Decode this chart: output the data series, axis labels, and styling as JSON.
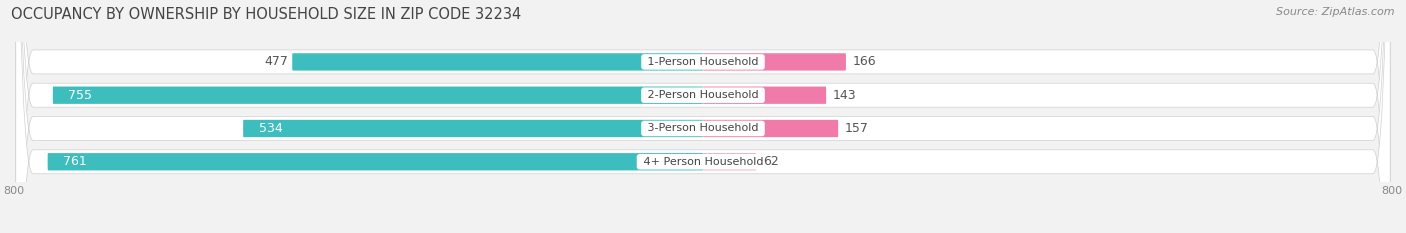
{
  "title": "OCCUPANCY BY OWNERSHIP BY HOUSEHOLD SIZE IN ZIP CODE 32234",
  "source": "Source: ZipAtlas.com",
  "categories": [
    "1-Person Household",
    "2-Person Household",
    "3-Person Household",
    "4+ Person Household"
  ],
  "owner_values": [
    477,
    755,
    534,
    761
  ],
  "renter_values": [
    166,
    143,
    157,
    62
  ],
  "owner_color": "#3dbdbd",
  "renter_color": "#f07aaa",
  "renter_color_light": "#f0aac8",
  "background_color": "#f2f2f2",
  "row_bg_color": "#e8e8e8",
  "axis_min": -800,
  "axis_max": 800,
  "title_fontsize": 10.5,
  "source_fontsize": 8,
  "bar_label_fontsize": 9,
  "category_fontsize": 8,
  "tick_fontsize": 8,
  "legend_fontsize": 9,
  "figsize": [
    14.06,
    2.33
  ],
  "dpi": 100
}
